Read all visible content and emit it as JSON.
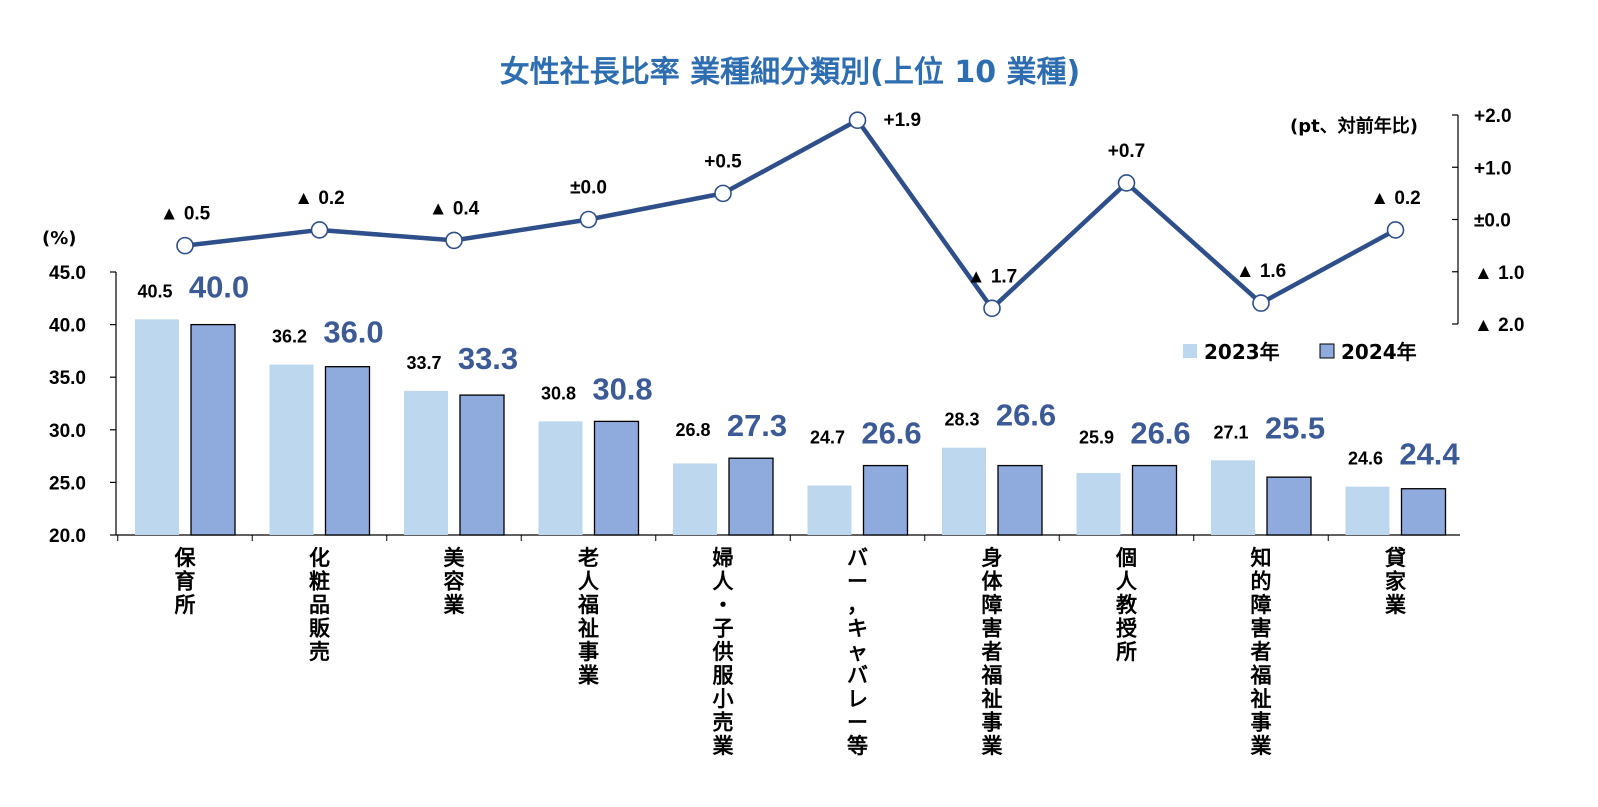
{
  "chart_data": {
    "type": "bar",
    "title": "女性社長比率 業種細分類別(上位 10 業種)",
    "ylabel": "(%)",
    "ylim": [
      20.0,
      45.0
    ],
    "yticks": [
      "45.0",
      "40.0",
      "35.0",
      "30.0",
      "25.0",
      "20.0"
    ],
    "y2label": "(pt、対前年比)",
    "y2lim": [
      -2.0,
      2.0
    ],
    "y2ticks": [
      "+2.0",
      "+1.0",
      "±0.0",
      "▲ 1.0",
      "▲ 2.0"
    ],
    "categories": [
      "保育所",
      "化粧品販売",
      "美容業",
      "老人福祉事業",
      "婦人・子供服小売業",
      "バー，キャバレー等",
      "身体障害者福祉事業",
      "個人教授所",
      "知的障害者福祉事業",
      "貸家業"
    ],
    "series": [
      {
        "name": "2023年",
        "color": "#bdd7ee",
        "values": [
          40.5,
          36.2,
          33.7,
          30.8,
          26.8,
          24.7,
          28.3,
          25.9,
          27.1,
          24.6
        ],
        "labels": [
          "40.5",
          "36.2",
          "33.7",
          "30.8",
          "26.8",
          "24.7",
          "28.3",
          "25.9",
          "27.1",
          "24.6"
        ]
      },
      {
        "name": "2024年",
        "color": "#8faadc",
        "values": [
          40.0,
          36.0,
          33.3,
          30.8,
          27.3,
          26.6,
          26.6,
          26.6,
          25.5,
          24.4
        ],
        "labels": [
          "40.0",
          "36.0",
          "33.3",
          "30.8",
          "27.3",
          "26.6",
          "26.6",
          "26.6",
          "25.5",
          "24.4"
        ]
      }
    ],
    "line": {
      "name": "対前年比",
      "color": "#2f4f8a",
      "values": [
        -0.5,
        -0.2,
        -0.4,
        0.0,
        0.5,
        1.9,
        -1.7,
        0.7,
        -1.6,
        -0.2
      ],
      "labels": [
        "▲ 0.5",
        "▲ 0.2",
        "▲ 0.4",
        "±0.0",
        "+0.5",
        "+1.9",
        "▲ 1.7",
        "+0.7",
        "▲ 1.6",
        "▲ 0.2"
      ]
    },
    "legend_position": "right"
  }
}
